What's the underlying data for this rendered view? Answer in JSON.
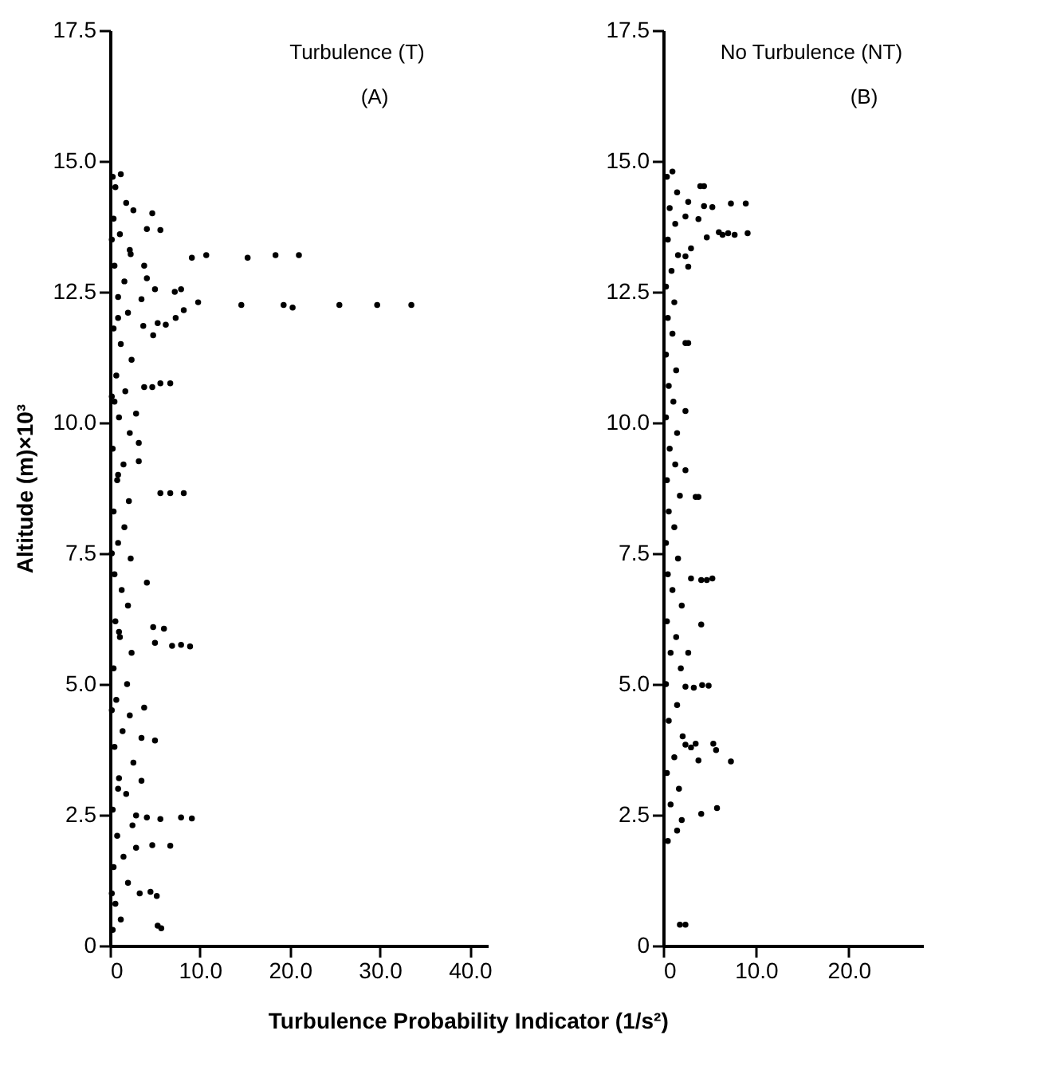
{
  "chart_data": [
    {
      "type": "scatter",
      "annotations": [
        "Turbulence (T)",
        "(A)"
      ],
      "xlabel": "Turbulence Probability Indicator (1/s²)",
      "ylabel": "Altitude (m)×10³",
      "marker": "circle",
      "xlim": [
        0,
        42
      ],
      "xticks": [
        0,
        {
          "value": 10,
          "label": "10.0"
        },
        {
          "value": 20,
          "label": "20.0"
        },
        {
          "value": 30,
          "label": "30.0"
        },
        {
          "value": 40,
          "label": "40.0"
        }
      ],
      "ylim": [
        0,
        17.5
      ],
      "yticks": [
        0,
        2.5,
        {
          "value": 5,
          "label": "5.0"
        },
        7.5,
        {
          "value": 10,
          "label": "10.0"
        },
        12.5,
        {
          "value": 15,
          "label": "15.0"
        },
        17.5
      ],
      "series": [
        {
          "color": "#000000",
          "x": [
            0.3,
            1.2,
            0.6,
            2.0,
            0.4,
            1.5,
            0.8,
            2.5,
            0.3,
            1.8,
            1.0,
            2.6,
            0.5,
            1.4,
            2.2,
            0.7,
            1.9,
            0.4,
            2.4,
            1.1,
            0.6,
            2.0,
            1.3,
            0.5,
            2.3,
            0.9,
            1.6,
            0.4,
            2.1,
            0.8,
            1.5,
            0.3,
            2.2,
            1.0,
            0.5,
            1.7,
            0.7,
            2.4,
            1.2,
            0.4,
            2.0,
            0.9,
            1.6,
            0.5,
            2.2,
            1.1,
            0.4,
            1.8,
            0.6,
            0.3,
            0.2,
            0.9,
            0.2,
            1.0,
            0.2,
            0.9,
            0.2,
            0.9,
            0.2,
            9.1,
            10.7,
            15.3,
            18.4,
            21.0,
            7.2,
            7.9,
            9.8,
            14.6,
            19.3,
            20.3,
            25.5,
            29.7,
            33.5,
            8.2,
            7.3,
            6.2,
            5.3,
            4.8,
            3.7,
            5.6,
            4.1,
            2.6,
            4.7,
            1.2,
            2.3,
            3.8,
            4.1,
            3.5,
            5.0,
            3.8,
            4.7,
            5.6,
            6.7,
            2.9,
            3.2,
            3.2,
            5.6,
            6.7,
            8.2,
            4.1,
            4.8,
            6.0,
            5.0,
            6.9,
            7.9,
            8.9,
            3.8,
            3.5,
            5.0,
            3.5,
            2.9,
            4.1,
            5.6,
            7.9,
            9.1,
            2.9,
            4.7,
            6.7,
            3.3,
            4.5,
            5.2,
            5.3,
            5.7
          ],
          "values": [
            0.3,
            0.5,
            0.8,
            1.2,
            1.5,
            1.7,
            2.1,
            2.3,
            2.6,
            2.9,
            3.2,
            3.5,
            3.8,
            4.1,
            4.4,
            4.7,
            5.0,
            5.3,
            5.6,
            5.9,
            6.2,
            6.5,
            6.8,
            7.1,
            7.4,
            7.7,
            8.0,
            8.3,
            8.5,
            8.9,
            9.2,
            9.5,
            9.8,
            10.1,
            10.4,
            10.6,
            10.9,
            11.2,
            11.5,
            11.8,
            12.1,
            12.4,
            12.7,
            13.0,
            13.3,
            13.6,
            13.9,
            14.2,
            14.5,
            14.7,
            1.0,
            3.0,
            4.5,
            6.0,
            7.5,
            9.0,
            10.5,
            12.0,
            13.5,
            13.15,
            13.2,
            13.15,
            13.2,
            13.2,
            12.5,
            12.55,
            12.3,
            12.25,
            12.25,
            12.2,
            12.25,
            12.25,
            12.25,
            12.15,
            12.0,
            11.87,
            11.9,
            11.67,
            11.85,
            13.68,
            13.7,
            14.06,
            14.0,
            14.75,
            13.22,
            13.0,
            12.76,
            12.36,
            12.55,
            10.68,
            10.68,
            10.75,
            10.75,
            10.17,
            9.61,
            9.26,
            8.65,
            8.65,
            8.65,
            6.94,
            6.09,
            6.06,
            5.79,
            5.73,
            5.75,
            5.72,
            4.55,
            3.97,
            3.92,
            3.15,
            2.49,
            2.45,
            2.42,
            2.45,
            2.43,
            1.87,
            1.92,
            1.91,
            1.0,
            1.03,
            0.95,
            0.38,
            0.33
          ]
        }
      ]
    },
    {
      "type": "scatter",
      "annotations": [
        "No Turbulence (NT)",
        "(B)"
      ],
      "marker": "circle",
      "xlim": [
        0,
        28
      ],
      "xticks": [
        0,
        {
          "value": 10,
          "label": "10.0"
        },
        {
          "value": 20,
          "label": "20.0"
        }
      ],
      "ylim": [
        0,
        17.5
      ],
      "yticks": [
        0,
        2.5,
        {
          "value": 5,
          "label": "5.0"
        },
        7.5,
        {
          "value": 10,
          "label": "10.0"
        },
        12.5,
        {
          "value": 15,
          "label": "15.0"
        },
        17.5
      ],
      "series": [
        {
          "color": "#000000",
          "x": [
            0.5,
            1.5,
            2.0,
            0.8,
            1.7,
            0.4,
            1.2,
            2.1,
            0.6,
            1.5,
            0.3,
            1.9,
            0.8,
            1.4,
            0.4,
            2.0,
            1.0,
            0.5,
            1.6,
            0.3,
            1.2,
            0.6,
            1.8,
            0.4,
            1.3,
            0.7,
            1.5,
            0.3,
            1.1,
            0.6,
            1.4,
            0.3,
            1.0,
            0.5,
            1.2,
            0.3,
            0.9,
            1.6,
            0.5,
            1.3,
            0.7,
            1.5,
            0.4,
            1.0,
            4.0,
            4.4,
            2.7,
            4.4,
            5.3,
            7.3,
            8.9,
            3.8,
            2.4,
            4.7,
            6.0,
            7.0,
            7.7,
            9.1,
            6.4,
            3.0,
            2.4,
            2.7,
            2.4,
            2.7,
            2.4,
            2.4,
            3.5,
            3.8,
            3.0,
            4.1,
            4.7,
            5.3,
            4.1,
            2.7,
            2.4,
            3.3,
            4.2,
            4.9,
            2.4,
            3.0,
            3.5,
            3.8,
            5.4,
            5.7,
            7.3,
            4.1,
            5.8,
            1.8,
            2.4
          ],
          "values": [
            2.0,
            2.2,
            2.4,
            2.7,
            3.0,
            3.3,
            3.6,
            4.0,
            4.3,
            4.6,
            5.0,
            5.3,
            5.6,
            5.9,
            6.2,
            6.5,
            6.8,
            7.1,
            7.4,
            7.7,
            8.0,
            8.3,
            8.6,
            8.9,
            9.2,
            9.5,
            9.8,
            10.1,
            10.4,
            10.7,
            11.0,
            11.3,
            11.7,
            12.0,
            12.3,
            12.6,
            12.9,
            13.2,
            13.5,
            13.8,
            14.1,
            14.4,
            14.7,
            14.8,
            14.52,
            14.52,
            14.22,
            14.14,
            14.12,
            14.19,
            14.19,
            13.89,
            13.94,
            13.54,
            13.64,
            13.62,
            13.59,
            13.62,
            13.59,
            13.33,
            13.18,
            12.98,
            11.52,
            11.52,
            10.22,
            9.09,
            8.58,
            8.58,
            7.02,
            6.99,
            6.99,
            7.02,
            6.14,
            5.6,
            4.95,
            4.93,
            4.98,
            4.97,
            3.84,
            3.79,
            3.86,
            3.54,
            3.86,
            3.74,
            3.52,
            2.52,
            2.63,
            0.4,
            0.4
          ]
        }
      ]
    }
  ]
}
